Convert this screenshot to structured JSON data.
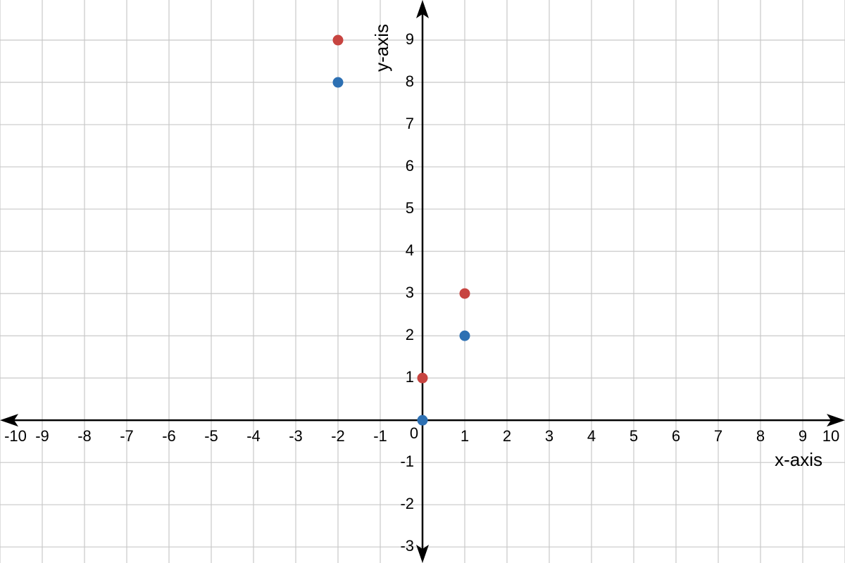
{
  "chart_data": {
    "type": "scatter",
    "x_label": "x-axis",
    "y_label": "y-axis",
    "xlim": [
      -10,
      10
    ],
    "ylim": [
      -3.38,
      9.95
    ],
    "xticks": [
      -10,
      -9,
      -8,
      -7,
      -6,
      -5,
      -4,
      -3,
      -2,
      -1,
      0,
      1,
      2,
      3,
      4,
      5,
      6,
      7,
      8,
      9,
      10
    ],
    "yticks": [
      -3,
      -2,
      -1,
      1,
      2,
      3,
      4,
      5,
      6,
      7,
      8,
      9
    ],
    "grid": true,
    "series": [
      {
        "color": "#c74440",
        "x": [
          -2,
          1,
          0
        ],
        "values": [
          9,
          3,
          1
        ]
      },
      {
        "color": "#2d70b3",
        "x": [
          -2,
          1,
          0
        ],
        "values": [
          8,
          2,
          0
        ]
      }
    ]
  }
}
